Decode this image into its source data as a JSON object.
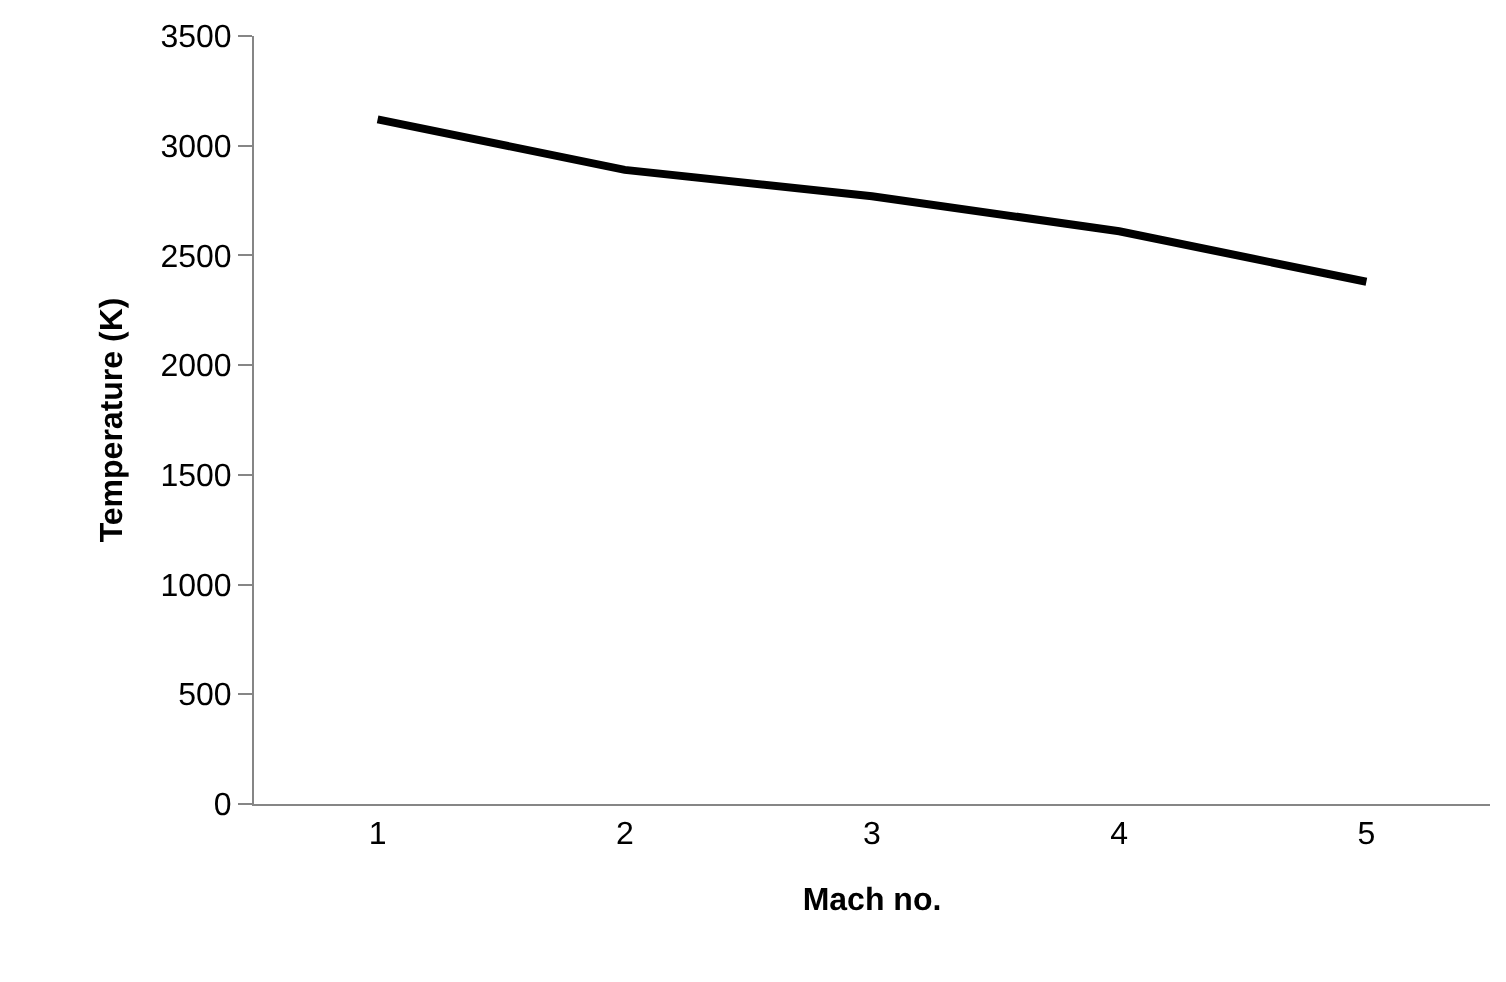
{
  "chart_data": {
    "type": "line",
    "xlabel": "Mach no.",
    "ylabel": "Temperature (K)",
    "categories": [
      "1",
      "2",
      "3",
      "4",
      "5"
    ],
    "series": [
      {
        "color": "#000000",
        "values": [
          3120,
          2890,
          2770,
          2610,
          2380
        ]
      }
    ],
    "ylim": [
      0,
      3500
    ],
    "yticks": [
      0,
      500,
      1000,
      1500,
      2000,
      2500,
      3000,
      3500
    ],
    "grid": false,
    "marker": "none",
    "line_style": "solid"
  }
}
